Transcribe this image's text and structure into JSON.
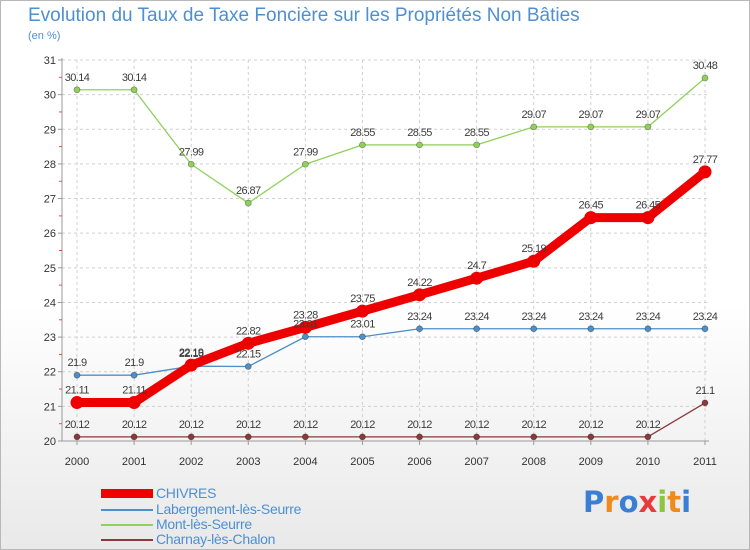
{
  "page": {
    "title": "Evolution du Taux de Taxe Foncière sur les Propriétés Non Bâties",
    "unit": "(en %)"
  },
  "chart_data": {
    "type": "line",
    "title": "Evolution du Taux de Taxe Foncière sur les Propriétés Non Bâties",
    "ylabel": "(en %)",
    "xlabel": "",
    "x": [
      2000,
      2001,
      2002,
      2003,
      2004,
      2005,
      2006,
      2007,
      2008,
      2009,
      2010,
      2011
    ],
    "ylim": [
      20,
      31
    ],
    "yticks": [
      20,
      21,
      22,
      23,
      24,
      25,
      26,
      27,
      28,
      29,
      30,
      31
    ],
    "grid": true,
    "legend_position": "bottom-left",
    "series": [
      {
        "name": "CHIVRES",
        "color": "#ee0000",
        "values": [
          21.11,
          21.11,
          22.19,
          22.82,
          23.28,
          23.75,
          24.22,
          24.7,
          25.19,
          26.45,
          26.45,
          27.77
        ],
        "labels": [
          "21.11",
          "21.11",
          "22.19",
          "22.82",
          "23.28",
          "23.75",
          "24.22",
          "24.7",
          "25.19",
          "26.45",
          "26.45",
          "27.77"
        ]
      },
      {
        "name": "Labergement-lès-Seurre",
        "color": "#4e8fc8",
        "values": [
          21.9,
          21.9,
          22.16,
          22.15,
          23.01,
          23.01,
          23.24,
          23.24,
          23.24,
          23.24,
          23.24,
          23.24
        ],
        "labels": [
          "21.9",
          "21.9",
          "22.16",
          "22.15",
          "23.01",
          "23.01",
          "23.24",
          "23.24",
          "23.24",
          "23.24",
          "23.24",
          "23.24"
        ]
      },
      {
        "name": "Mont-lès-Seurre",
        "color": "#8fd15a",
        "values": [
          30.14,
          30.14,
          27.99,
          26.87,
          27.99,
          28.55,
          28.55,
          28.55,
          29.07,
          29.07,
          29.07,
          30.48
        ],
        "labels": [
          "30.14",
          "30.14",
          "27.99",
          "26.87",
          "27.99",
          "28.55",
          "28.55",
          "28.55",
          "29.07",
          "29.07",
          "29.07",
          "30.48"
        ]
      },
      {
        "name": "Charnay-lès-Chalon",
        "color": "#8a3a3a",
        "values": [
          20.12,
          20.12,
          20.12,
          20.12,
          20.12,
          20.12,
          20.12,
          20.12,
          20.12,
          20.12,
          20.12,
          21.1
        ],
        "labels": [
          "20.12",
          "20.12",
          "20.12",
          "20.12",
          "20.12",
          "20.12",
          "20.12",
          "20.12",
          "20.12",
          "20.12",
          "20.12",
          "21.1"
        ]
      }
    ]
  },
  "logo": {
    "text": "Proxiti",
    "letter_colors": [
      "#3b7fd4",
      "#f08a1c",
      "#3b7fd4",
      "#e83c3c",
      "#8cc63f",
      "#f08a1c",
      "#3b7fd4"
    ]
  }
}
